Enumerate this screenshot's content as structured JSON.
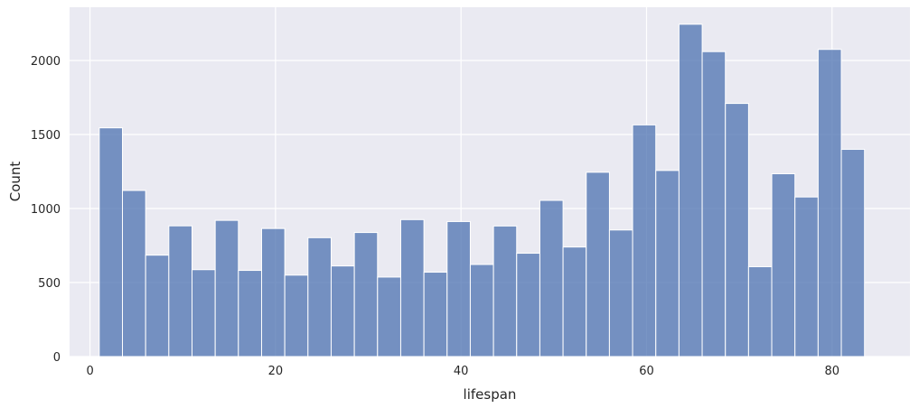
{
  "chart_data": {
    "type": "bar",
    "subtype": "histogram",
    "title": "",
    "xlabel": "lifespan",
    "ylabel": "Count",
    "xlim": [
      -2.2,
      88.4
    ],
    "ylim": [
      0,
      2360
    ],
    "xticks": [
      0,
      20,
      40,
      60,
      80
    ],
    "yticks": [
      0,
      500,
      1000,
      1500,
      2000
    ],
    "grid": true,
    "legend": "none",
    "bin_start": 1.0,
    "bin_width": 2.5,
    "values": [
      1545,
      1122,
      685,
      883,
      587,
      920,
      582,
      865,
      550,
      803,
      612,
      838,
      537,
      925,
      570,
      912,
      622,
      882,
      698,
      1055,
      740,
      1245,
      855,
      1565,
      1257,
      2245,
      2060,
      1710,
      607,
      1235,
      1078,
      2075,
      1400
    ],
    "colors": {
      "bar_fill": "#4c72b0",
      "bar_edge": "#ffffff",
      "background": "#eaeaf2",
      "grid": "#ffffff"
    }
  }
}
